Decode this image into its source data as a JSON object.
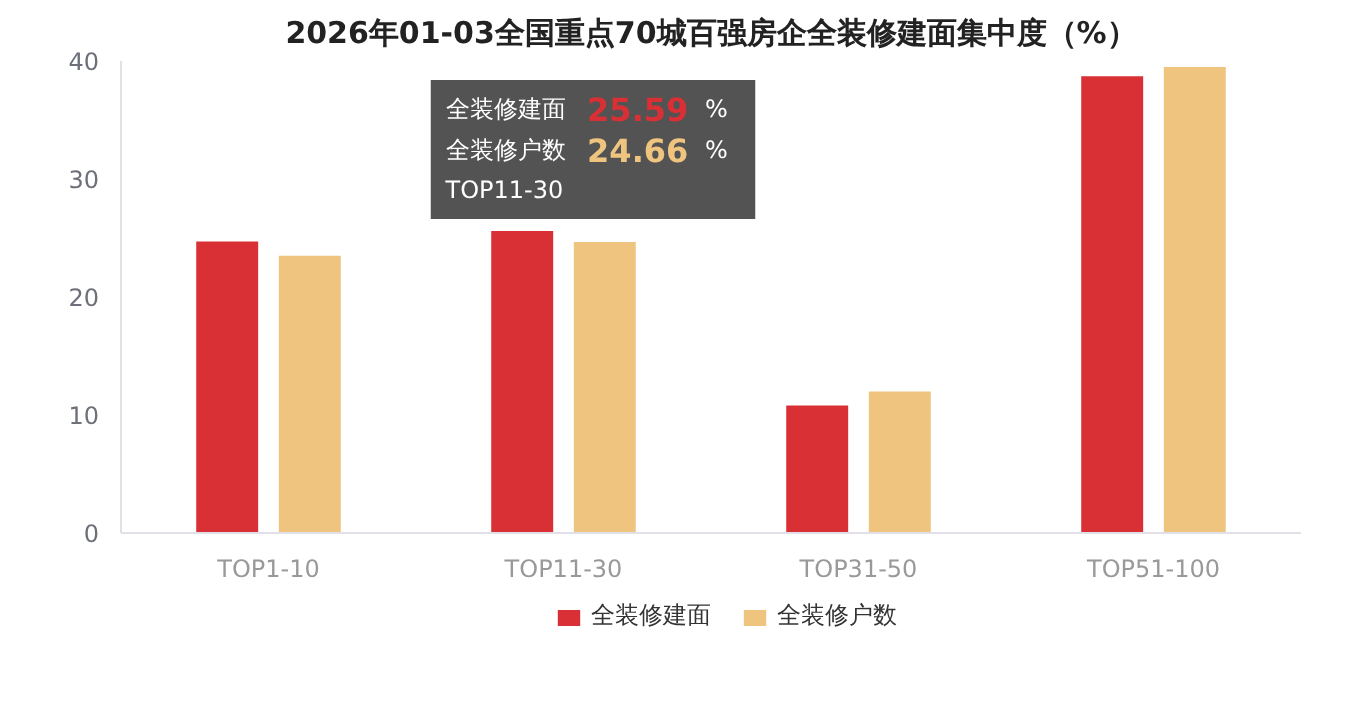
{
  "chart_data": {
    "type": "bar",
    "title": "2026年01-03全国重点70城百强房企全装修建面集中度（%）",
    "categories": [
      "TOP1-10",
      "TOP11-30",
      "TOP31-50",
      "TOP51-100"
    ],
    "series": [
      {
        "name": "全装修建面",
        "color": "#d93035",
        "values": [
          24.7,
          25.59,
          10.8,
          38.7
        ]
      },
      {
        "name": "全装修户数",
        "color": "#efc47f",
        "values": [
          23.5,
          24.66,
          12.0,
          39.5
        ]
      }
    ],
    "ylim": [
      0,
      40
    ],
    "yticks": [
      0,
      10,
      20,
      30,
      40
    ],
    "grid": false,
    "legend": "bottom",
    "annotations": [
      "全装修建面 25.59 %",
      "全装修户数 24.66 %",
      "TOP11-30"
    ]
  }
}
